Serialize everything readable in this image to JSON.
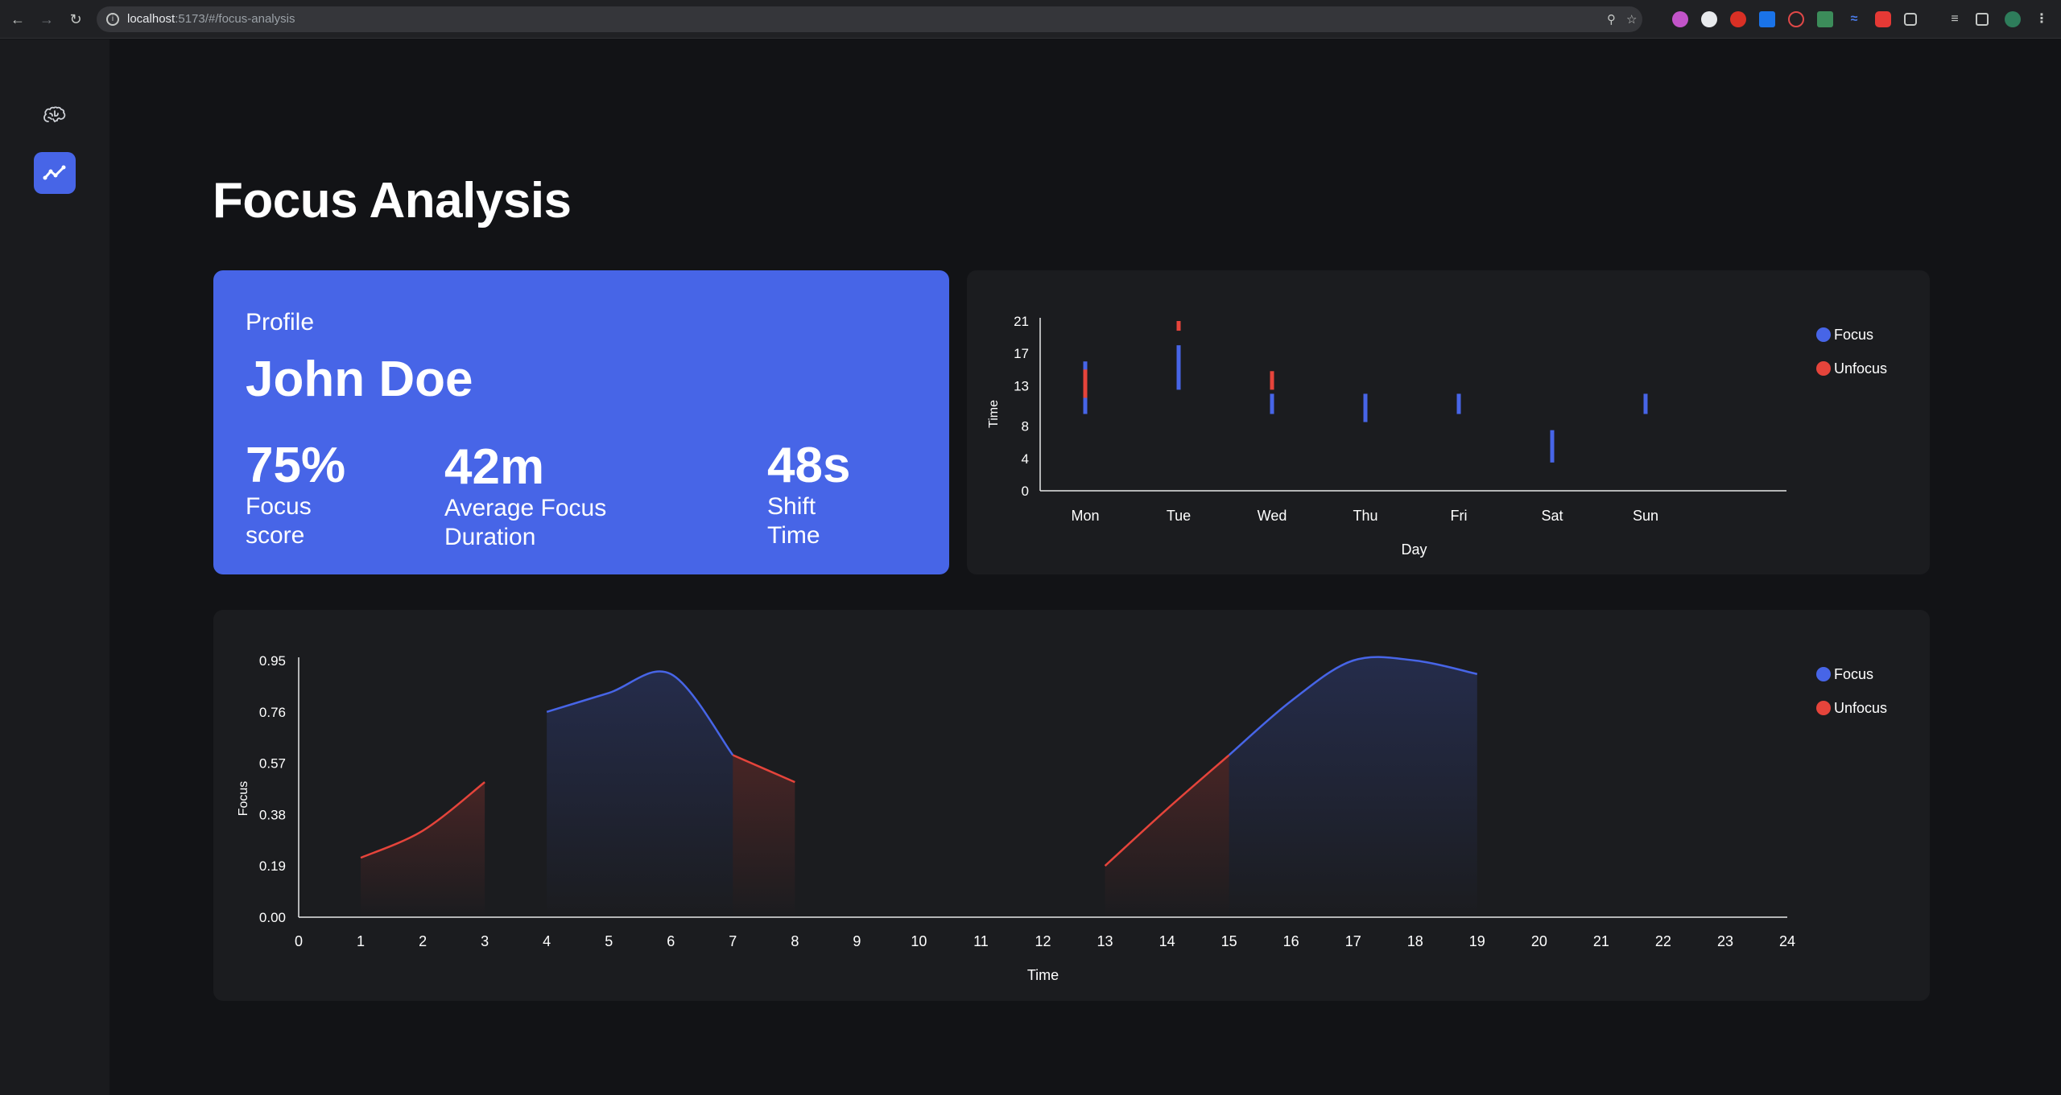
{
  "browser": {
    "url_host": "localhost",
    "url_rest": ":5173/#/focus-analysis"
  },
  "sidebar": {
    "items": [
      {
        "icon": "brain-icon"
      },
      {
        "icon": "line-chart-icon",
        "active": true
      }
    ],
    "accent": "#4765e7"
  },
  "page": {
    "title": "Focus Analysis"
  },
  "profile": {
    "label": "Profile",
    "name": "John Doe",
    "stats": [
      {
        "value": "75%",
        "label_line1": "Focus",
        "label_line2": "score"
      },
      {
        "value": "42m",
        "label_line1": "Average Focus",
        "label_line2": "Duration"
      },
      {
        "value": "48s",
        "label_line1": "Shift",
        "label_line2": "Time"
      }
    ]
  },
  "legend": {
    "focus": "Focus",
    "unfocus": "Unfocus"
  },
  "colors": {
    "focus": "#4765e7",
    "unfocus": "#e5443b"
  },
  "chart_data": [
    {
      "type": "bar",
      "xlabel": "Day",
      "ylabel": "Time",
      "ylim": [
        0,
        21
      ],
      "yticks": [
        0,
        4,
        8,
        13,
        17,
        21
      ],
      "categories": [
        "Mon",
        "Tue",
        "Wed",
        "Thu",
        "Fri",
        "Sat",
        "Sun"
      ],
      "series": [
        {
          "name": "Focus",
          "ranges": [
            [
              9.5,
              16
            ],
            [
              12.5,
              18
            ],
            [
              9.5,
              12
            ],
            [
              8.5,
              12
            ],
            [
              9.5,
              12
            ],
            [
              3.5,
              7.5
            ],
            [
              9.5,
              12
            ]
          ]
        },
        {
          "name": "Unfocus",
          "ranges": [
            [
              11.5,
              15
            ],
            [
              19.8,
              21
            ],
            null,
            null,
            null,
            null,
            null
          ],
          "extra": [
            null,
            null,
            [
              12.5,
              14.8
            ],
            null,
            null,
            null,
            null
          ]
        }
      ],
      "legend": "top-right",
      "grid": false
    },
    {
      "type": "area",
      "xlabel": "Time",
      "ylabel": "Focus",
      "xlim": [
        0,
        24
      ],
      "ylim": [
        0,
        0.95
      ],
      "xticks": [
        0,
        1,
        2,
        3,
        4,
        5,
        6,
        7,
        8,
        9,
        10,
        11,
        12,
        13,
        14,
        15,
        16,
        17,
        18,
        19,
        20,
        21,
        22,
        23,
        24
      ],
      "yticks": [
        "0.00",
        "0.19",
        "0.38",
        "0.57",
        "0.76",
        "0.95"
      ],
      "segments": [
        {
          "series": "Unfocus",
          "points": [
            [
              1,
              0.22
            ],
            [
              2,
              0.32
            ],
            [
              3,
              0.5
            ]
          ]
        },
        {
          "series": "Focus",
          "points": [
            [
              4,
              0.76
            ],
            [
              5,
              0.83
            ],
            [
              6,
              0.9
            ],
            [
              7,
              0.6
            ]
          ]
        },
        {
          "series": "Unfocus",
          "points": [
            [
              7,
              0.6
            ],
            [
              8,
              0.5
            ]
          ]
        },
        {
          "series": "Unfocus",
          "points": [
            [
              13,
              0.19
            ],
            [
              14,
              0.4
            ],
            [
              15,
              0.6
            ]
          ]
        },
        {
          "series": "Focus",
          "points": [
            [
              15,
              0.6
            ],
            [
              16,
              0.8
            ],
            [
              17,
              0.95
            ],
            [
              18,
              0.95
            ],
            [
              19,
              0.9
            ]
          ]
        }
      ],
      "legend": "top-right",
      "grid": false
    }
  ]
}
